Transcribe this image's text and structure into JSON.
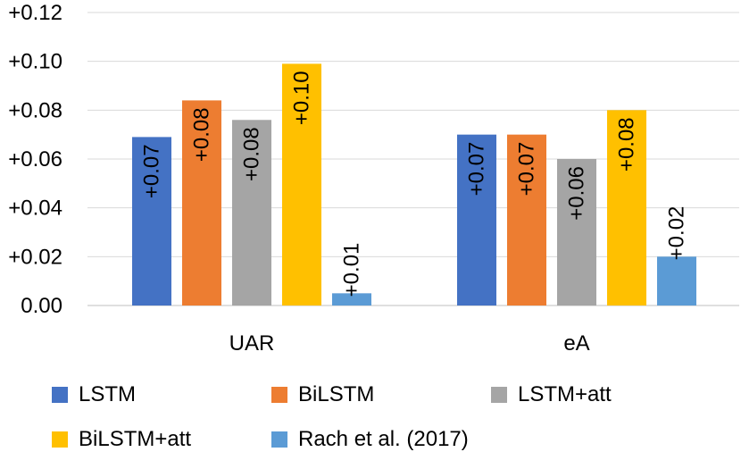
{
  "chart_data": {
    "type": "bar",
    "title": "",
    "xlabel": "",
    "ylabel": "",
    "categories": [
      "UAR",
      "eA"
    ],
    "ylim": [
      0,
      0.12
    ],
    "yticks": [
      0.0,
      0.02,
      0.04,
      0.06,
      0.08,
      0.1,
      0.12
    ],
    "ytick_labels": [
      "0.00",
      "+0.02",
      "+0.04",
      "+0.06",
      "+0.08",
      "+0.10",
      "+0.12"
    ],
    "grid": true,
    "legend_position": "bottom",
    "series": [
      {
        "name": "LSTM",
        "color": "#4472C4",
        "values": [
          0.069,
          0.07
        ],
        "labels": [
          "+0.07",
          "+0.07"
        ]
      },
      {
        "name": "BiLSTM",
        "color": "#ED7D31",
        "values": [
          0.084,
          0.07
        ],
        "labels": [
          "+0.08",
          "+0.07"
        ]
      },
      {
        "name": "LSTM+att",
        "color": "#A5A5A5",
        "values": [
          0.076,
          0.06
        ],
        "labels": [
          "+0.08",
          "+0.06"
        ]
      },
      {
        "name": "BiLSTM+att",
        "color": "#FFC000",
        "values": [
          0.099,
          0.08
        ],
        "labels": [
          "+0.10",
          "+0.08"
        ]
      },
      {
        "name": "Rach et al. (2017)",
        "color": "#5B9BD5",
        "values": [
          0.005,
          0.02
        ],
        "labels": [
          "+0.01",
          "+0.02"
        ]
      }
    ]
  }
}
